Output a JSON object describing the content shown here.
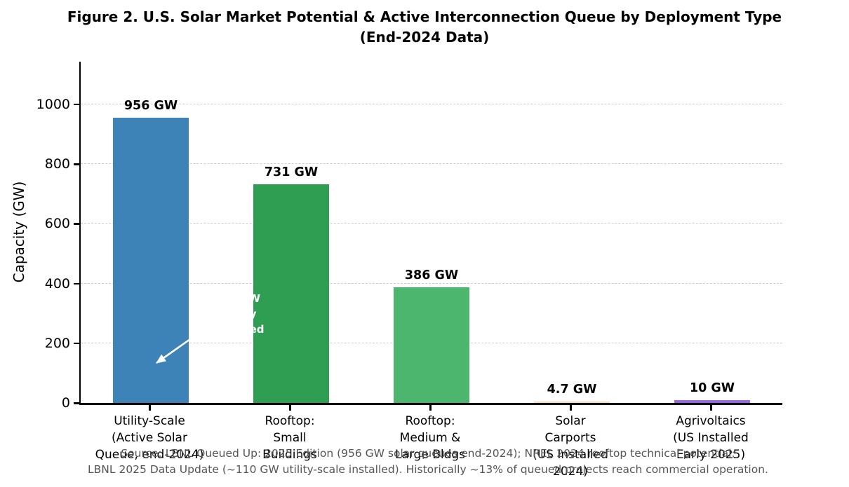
{
  "figure": {
    "caption": "Source: LBNL Queued Up: 2025 Edition (956 GW solar queues end-2024); NREL 2024 rooftop technical potential;\nLBNL 2025 Data Update (~110 GW utility-scale installed). Historically ~13% of queued projects reach commercial operation."
  },
  "chart_data": {
    "type": "bar",
    "title": "Figure 2. U.S. Solar Market Potential & Active Interconnection Queue by Deployment Type\n(End-2024 Data)",
    "xlabel": "",
    "ylabel": "Capacity (GW)",
    "ylim": [
      0,
      1140
    ],
    "yticks": [
      0,
      200,
      400,
      600,
      800,
      1000
    ],
    "grid": "horizontal-dashed",
    "legend": "none",
    "categories": [
      "Utility-Scale\n(Active Solar\nQueue, end-2024)",
      "Rooftop:\nSmall\nBuildings",
      "Rooftop:\nMedium &\nLarge Bldgs",
      "Solar\nCarports\n(US Installed\n2024)",
      "Agrivoltaics\n(US Installed\nEarly 2025)"
    ],
    "values": [
      956,
      731,
      386,
      4.7,
      10
    ],
    "value_labels": [
      "956 GW",
      "731 GW",
      "386 GW",
      "4.7 GW",
      "10 GW"
    ],
    "bar_colors": [
      "#3d83b8",
      "#2f9e53",
      "#4cb56e",
      "#fbd9b4",
      "#9a67ea"
    ],
    "annotation": {
      "text": "~124 GW\nactually\ncompleted",
      "color": "#ffffff"
    },
    "colors": {
      "axis": "#000000",
      "grid": "#cccccc",
      "caption": "#555555",
      "value_label": "#000000"
    }
  }
}
